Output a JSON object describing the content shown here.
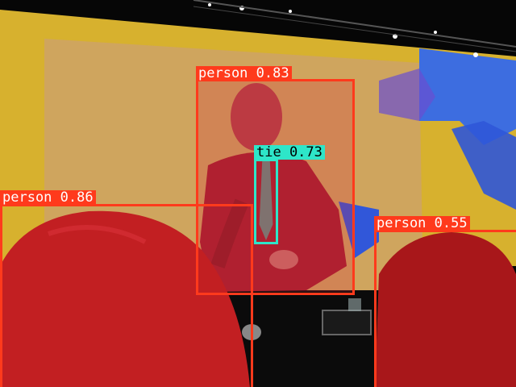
{
  "image": {
    "description_free": true
  },
  "detections": [
    {
      "id": "person-presenter",
      "label": "person 0.83",
      "class": "person",
      "score": 0.83,
      "color": "#ff3a1c",
      "text_color": "#ffffff"
    },
    {
      "id": "tie",
      "label": "tie 0.73",
      "class": "tie",
      "score": 0.73,
      "color": "#2ee6c9",
      "text_color": "#000000"
    },
    {
      "id": "person-left",
      "label": "person 0.86",
      "class": "person",
      "score": 0.86,
      "color": "#ff3a1c",
      "text_color": "#ffffff"
    },
    {
      "id": "person-right",
      "label": "person 0.55",
      "class": "person",
      "score": 0.55,
      "color": "#ff3a1c",
      "text_color": "#ffffff"
    }
  ],
  "colors": {
    "screen_yellow": "#d9b42e",
    "screen_center": "#c9a35a",
    "mask_red": "#c81e1e",
    "stage_dark": "#0b0b0b",
    "accent_blue": "#3d6de0"
  }
}
